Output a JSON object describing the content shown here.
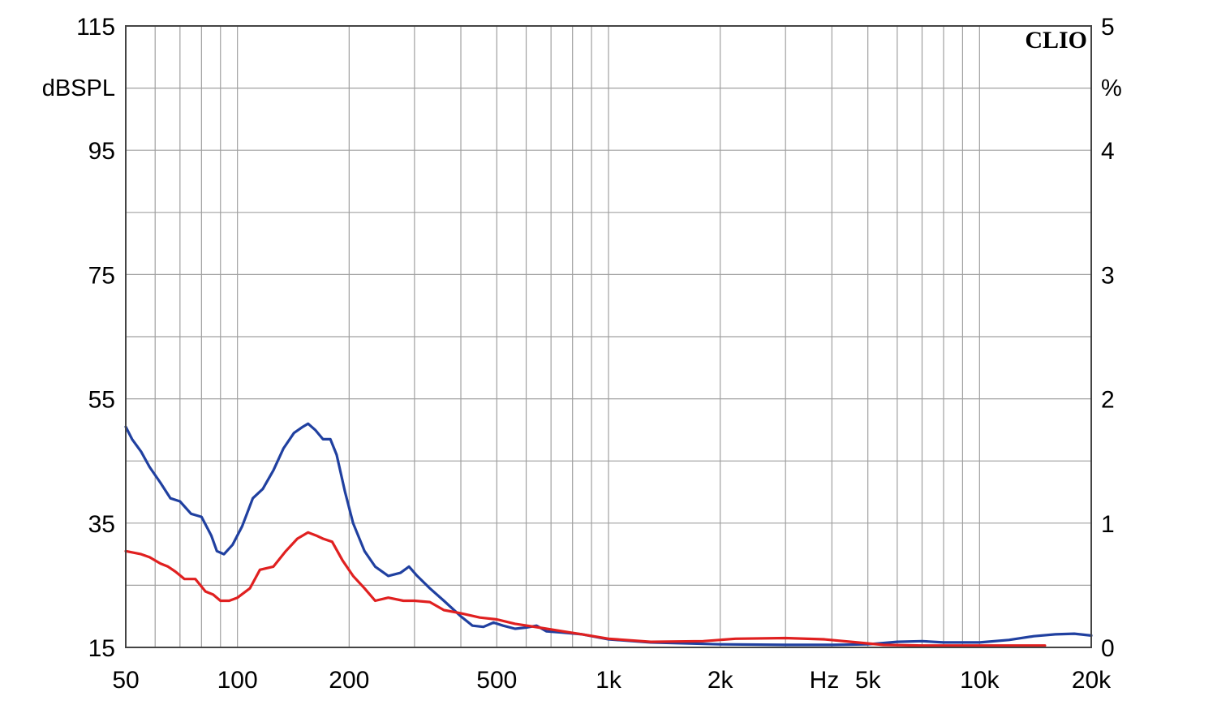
{
  "brand": "CLIO",
  "chart_data": {
    "type": "line",
    "title": "",
    "xlabel": "Hz",
    "x_scale": "log",
    "xlim": [
      50,
      20000
    ],
    "x_tick_labels": [
      "50",
      "100",
      "200",
      "500",
      "1k",
      "2k",
      "5k",
      "10k",
      "20k"
    ],
    "x_tick_values": [
      50,
      100,
      200,
      500,
      1000,
      2000,
      5000,
      10000,
      20000
    ],
    "left_axis": {
      "label": "dBSPL",
      "ylim": [
        15,
        115
      ],
      "tick_labels": [
        "115",
        "95",
        "75",
        "55",
        "35",
        "15"
      ],
      "tick_values": [
        115,
        95,
        75,
        55,
        35,
        15
      ]
    },
    "right_axis": {
      "label": "%",
      "ylim": [
        0,
        5
      ],
      "tick_labels": [
        "5",
        "4",
        "3",
        "2",
        "1",
        "0"
      ],
      "tick_values": [
        5,
        4,
        3,
        2,
        1,
        0
      ]
    },
    "grid": true,
    "series": [
      {
        "color": "#2040a0",
        "axis": "left",
        "points": [
          [
            50,
            50.5
          ],
          [
            52,
            48.5
          ],
          [
            55,
            46.5
          ],
          [
            58,
            44
          ],
          [
            62,
            41.5
          ],
          [
            66,
            39
          ],
          [
            70,
            38.5
          ],
          [
            75,
            36.5
          ],
          [
            80,
            36
          ],
          [
            85,
            33
          ],
          [
            88,
            30.5
          ],
          [
            92,
            30
          ],
          [
            97,
            31.5
          ],
          [
            103,
            34.5
          ],
          [
            110,
            39
          ],
          [
            117,
            40.5
          ],
          [
            125,
            43.5
          ],
          [
            133,
            47
          ],
          [
            142,
            49.5
          ],
          [
            150,
            50.5
          ],
          [
            155,
            51
          ],
          [
            162,
            50
          ],
          [
            170,
            48.5
          ],
          [
            178,
            48.5
          ],
          [
            185,
            46
          ],
          [
            195,
            40
          ],
          [
            205,
            35
          ],
          [
            220,
            30.5
          ],
          [
            235,
            28
          ],
          [
            255,
            26.5
          ],
          [
            275,
            27
          ],
          [
            290,
            28
          ],
          [
            305,
            26.5
          ],
          [
            330,
            24.5
          ],
          [
            360,
            22.5
          ],
          [
            400,
            20
          ],
          [
            430,
            18.5
          ],
          [
            460,
            18.3
          ],
          [
            490,
            19
          ],
          [
            520,
            18.5
          ],
          [
            560,
            18
          ],
          [
            600,
            18.2
          ],
          [
            640,
            18.5
          ],
          [
            680,
            17.6
          ],
          [
            750,
            17.4
          ],
          [
            850,
            17.1
          ],
          [
            1000,
            16.3
          ],
          [
            1300,
            15.8
          ],
          [
            2000,
            15.5
          ],
          [
            3000,
            15.4
          ],
          [
            4000,
            15.4
          ],
          [
            5000,
            15.5
          ],
          [
            6000,
            15.9
          ],
          [
            7000,
            16
          ],
          [
            8000,
            15.8
          ],
          [
            10000,
            15.8
          ],
          [
            12000,
            16.2
          ],
          [
            14000,
            16.8
          ],
          [
            16000,
            17.1
          ],
          [
            18000,
            17.2
          ],
          [
            20000,
            16.9
          ]
        ]
      },
      {
        "color": "#e02020",
        "axis": "left",
        "points": [
          [
            50,
            30.5
          ],
          [
            55,
            30
          ],
          [
            58,
            29.5
          ],
          [
            62,
            28.5
          ],
          [
            65,
            28
          ],
          [
            68,
            27.2
          ],
          [
            72,
            26
          ],
          [
            77,
            26
          ],
          [
            82,
            24
          ],
          [
            86,
            23.5
          ],
          [
            90,
            22.5
          ],
          [
            95,
            22.5
          ],
          [
            100,
            23
          ],
          [
            108,
            24.5
          ],
          [
            115,
            27.5
          ],
          [
            125,
            28
          ],
          [
            135,
            30.5
          ],
          [
            145,
            32.5
          ],
          [
            155,
            33.5
          ],
          [
            163,
            33
          ],
          [
            170,
            32.5
          ],
          [
            180,
            32
          ],
          [
            192,
            29
          ],
          [
            205,
            26.5
          ],
          [
            220,
            24.5
          ],
          [
            235,
            22.5
          ],
          [
            255,
            23
          ],
          [
            280,
            22.5
          ],
          [
            300,
            22.5
          ],
          [
            330,
            22.3
          ],
          [
            360,
            21
          ],
          [
            400,
            20.5
          ],
          [
            450,
            19.8
          ],
          [
            500,
            19.5
          ],
          [
            560,
            18.8
          ],
          [
            650,
            18.2
          ],
          [
            750,
            17.6
          ],
          [
            850,
            17.1
          ],
          [
            1000,
            16.4
          ],
          [
            1300,
            15.9
          ],
          [
            1800,
            16
          ],
          [
            2200,
            16.4
          ],
          [
            3000,
            16.5
          ],
          [
            3800,
            16.3
          ],
          [
            4500,
            15.9
          ],
          [
            5500,
            15.4
          ],
          [
            7000,
            15.3
          ],
          [
            10000,
            15.3
          ],
          [
            15000,
            15.3
          ]
        ]
      }
    ]
  }
}
